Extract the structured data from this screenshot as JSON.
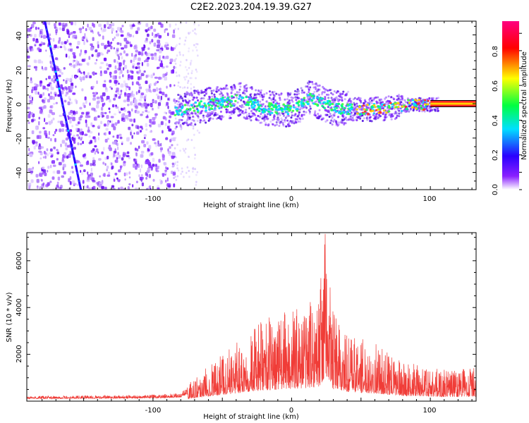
{
  "figure": {
    "title": "C2E2.2023.204.19.39.G27"
  },
  "colors": {
    "snr_trace": "#f03c37",
    "track_line": "#000000",
    "scale": [
      "#ffffff",
      "#8a20ff",
      "#2a00ff",
      "#00e0ff",
      "#00ff40",
      "#ffff00",
      "#ff0000",
      "#ff0080"
    ]
  },
  "chart_data": [
    {
      "type": "heatmap",
      "title": "",
      "xlabel": "Height of straight line (km)",
      "ylabel": "Frequency (Hz)",
      "xlim": [
        -191,
        133
      ],
      "ylim": [
        -50,
        48
      ],
      "x_ticks": [
        -100,
        0,
        100
      ],
      "y_ticks": [
        40,
        20,
        0,
        -20,
        -40
      ],
      "colorbar": {
        "label": "Normalized spectral amplitude",
        "ticks": [
          0.0,
          0.2,
          0.4,
          0.6,
          0.8
        ],
        "range": [
          0,
          0.97
        ]
      },
      "signal_trace": [
        {
          "x": -85,
          "y": -4
        },
        {
          "x": -60,
          "y": 0
        },
        {
          "x": -38,
          "y": 3
        },
        {
          "x": -20,
          "y": -2
        },
        {
          "x": 0,
          "y": -3
        },
        {
          "x": 12,
          "y": 4
        },
        {
          "x": 30,
          "y": -2
        },
        {
          "x": 50,
          "y": -3
        },
        {
          "x": 70,
          "y": -2
        },
        {
          "x": 85,
          "y": 0
        },
        {
          "x": 105,
          "y": 0
        }
      ],
      "interference_track": [
        {
          "x": -178,
          "y": 48
        },
        {
          "x": -152,
          "y": -50
        }
      ],
      "reference_line": {
        "y": 0,
        "x_start": 100,
        "x_end": 133
      }
    },
    {
      "type": "line",
      "title": "",
      "xlabel": "Height of straight line (km)",
      "ylabel": "SNR (10 * v/v)",
      "xlim": [
        -191,
        133
      ],
      "ylim": [
        0,
        7200
      ],
      "x_ticks": [
        -100,
        0,
        100
      ],
      "y_ticks": [
        2000,
        4000,
        6000
      ],
      "series": [
        {
          "x": [
            -191,
            -150,
            -100,
            -80,
            -70,
            -60,
            -50,
            -40,
            -30,
            -20,
            -10,
            0,
            10,
            20,
            24,
            30,
            40,
            50,
            60,
            70,
            80,
            90,
            100,
            110,
            120,
            133
          ],
          "values": [
            200,
            220,
            250,
            320,
            900,
            1400,
            1800,
            2200,
            2700,
            3100,
            3300,
            3500,
            3700,
            4200,
            6800,
            3400,
            2600,
            2400,
            2200,
            1800,
            1500,
            1400,
            1300,
            1200,
            1250,
            1300
          ]
        }
      ]
    }
  ]
}
